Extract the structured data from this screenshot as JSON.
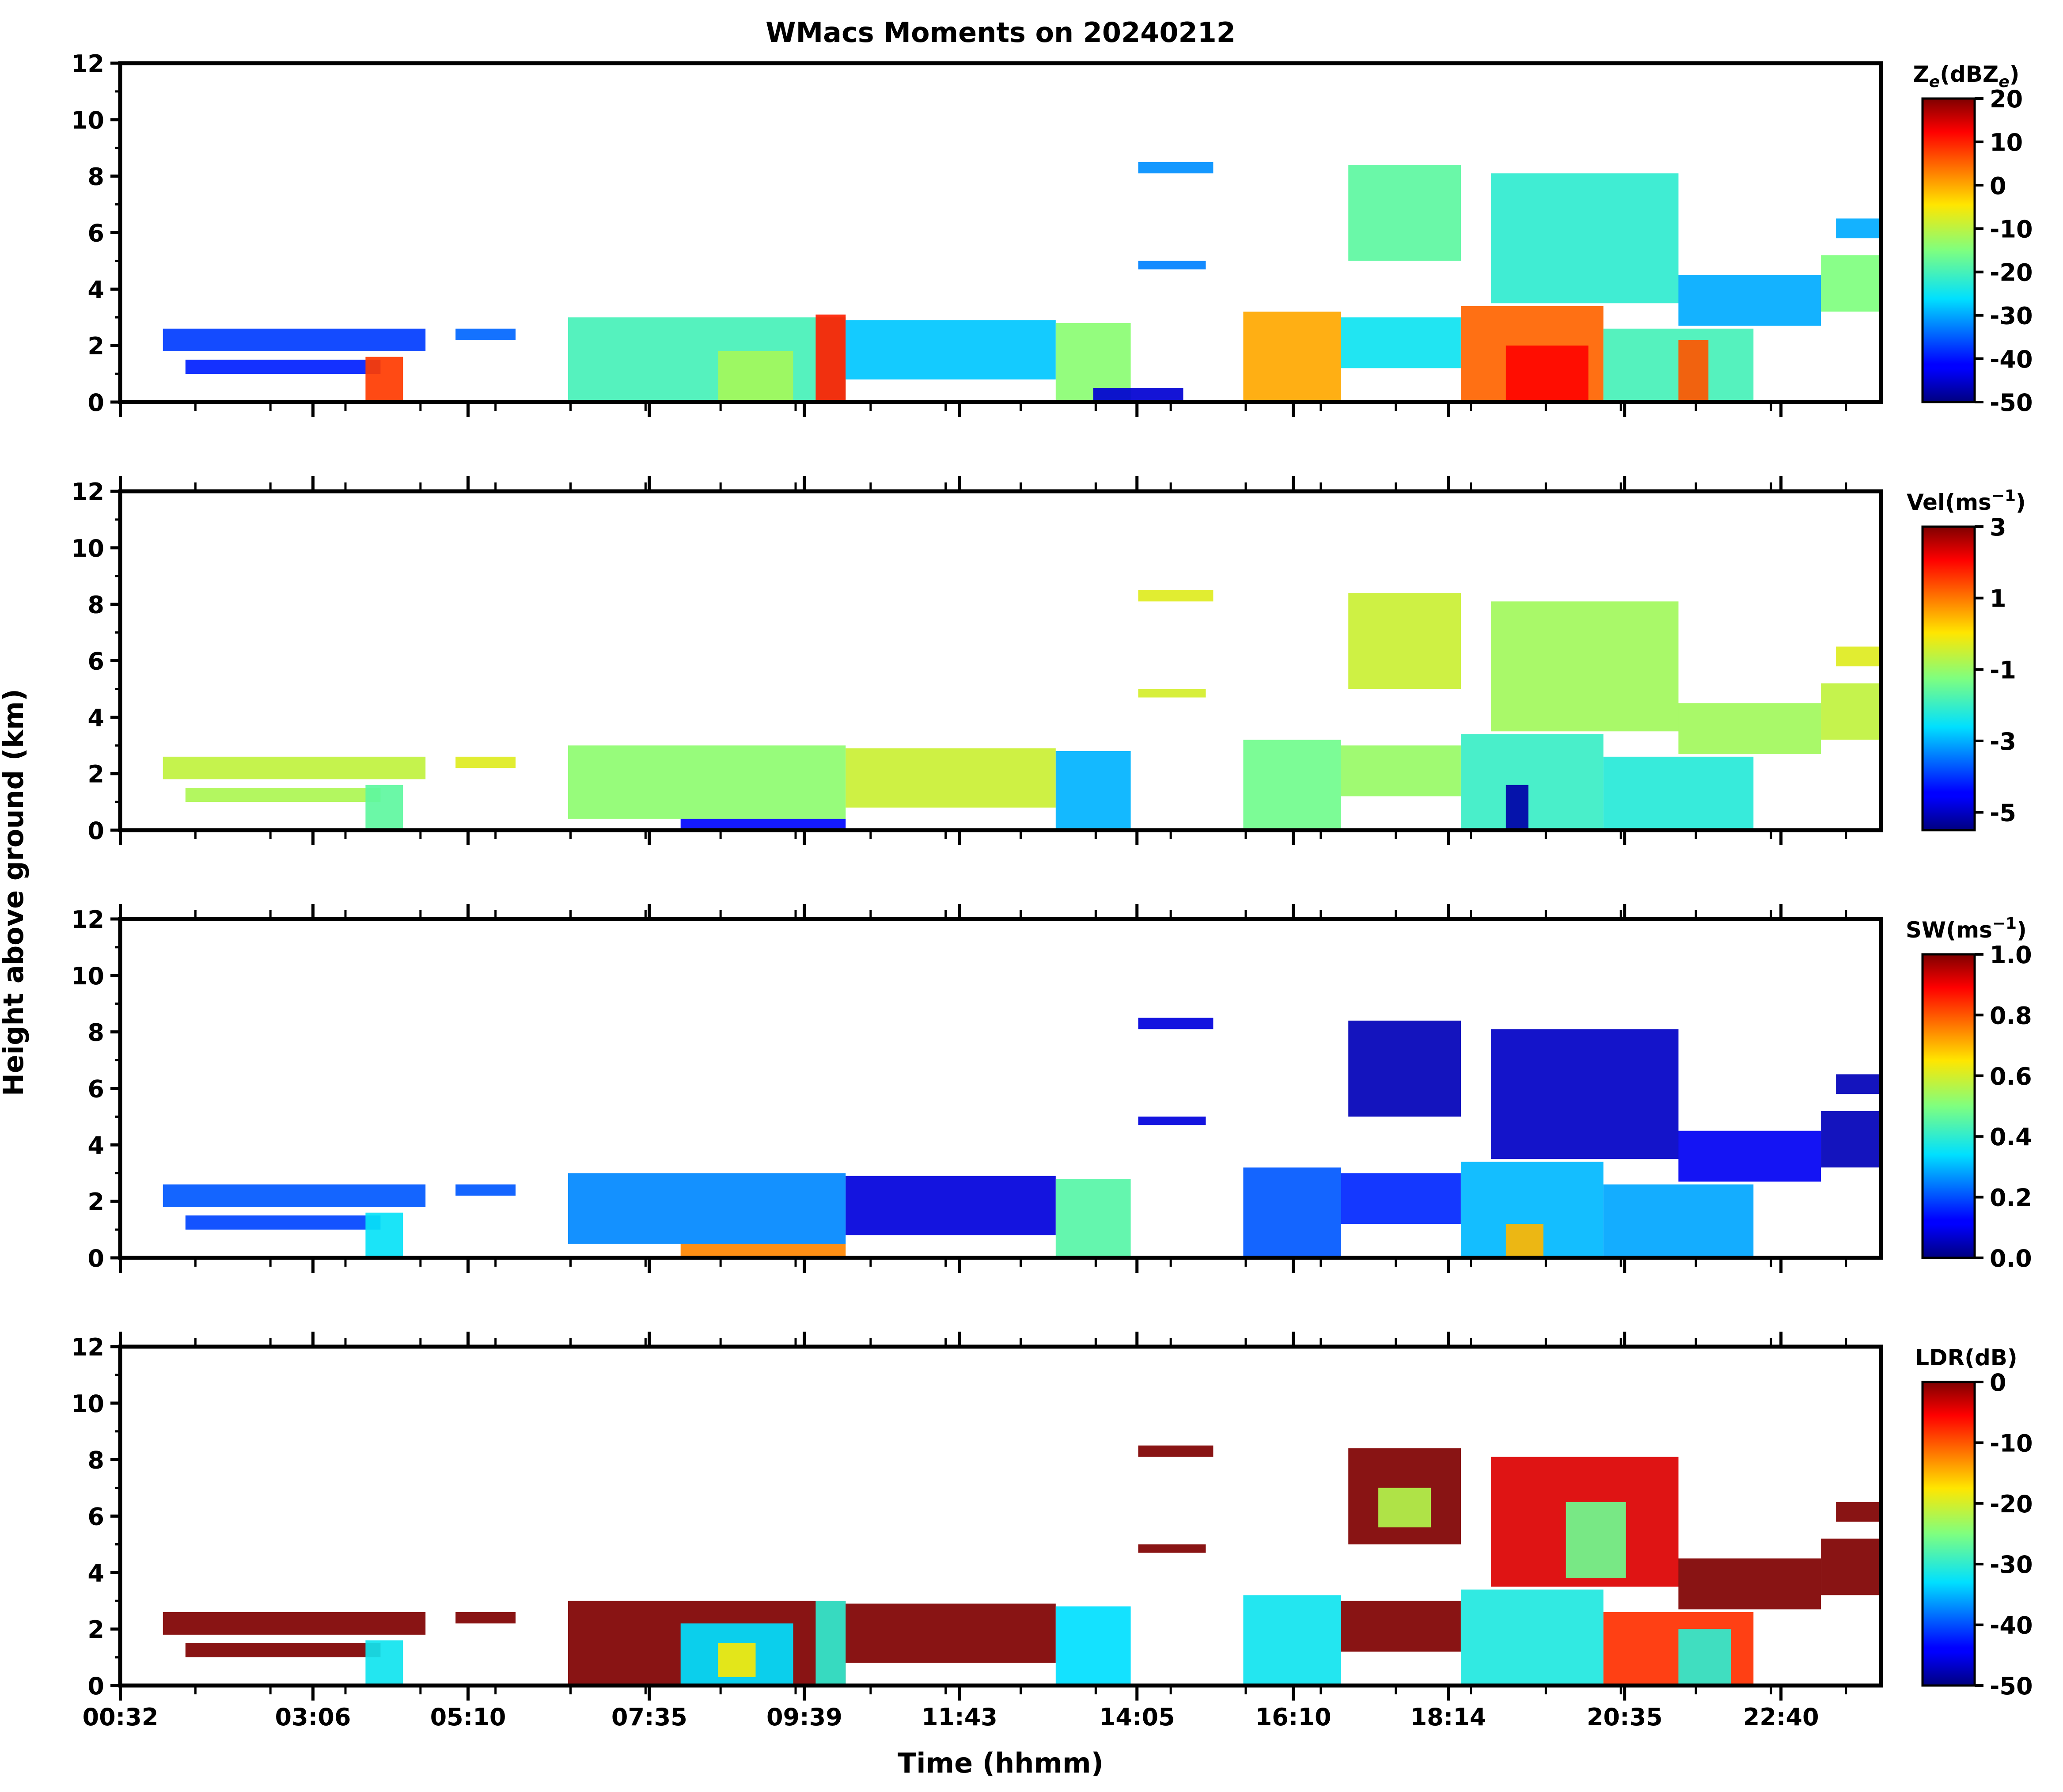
{
  "chart_data": {
    "type": "heatmap",
    "title": "WMacs Moments on 20240212",
    "xlabel": "Time (hhmm)",
    "ylabel": "Height above ground (km)",
    "x_tick_labels": [
      "00:32",
      "03:06",
      "05:10",
      "07:35",
      "09:39",
      "11:43",
      "14:05",
      "16:10",
      "18:14",
      "20:35",
      "22:40"
    ],
    "x_range_hours": [
      0.53,
      24.0
    ],
    "x_tick_hours": [
      0.533,
      3.1,
      5.167,
      7.583,
      9.65,
      11.717,
      14.083,
      16.167,
      18.233,
      20.583,
      22.667
    ],
    "y_ticks": [
      0,
      2,
      4,
      6,
      8,
      10,
      12
    ],
    "ylim_km": [
      0,
      12
    ],
    "colormap": "jet",
    "panels": [
      {
        "id": "ze",
        "colorbar_label": "Ze(dBZe)",
        "label_main": "Z",
        "label_sub": "e",
        "label_mid": "(dBZ",
        "label_sub2": "e",
        "label_end": ")",
        "clim": [
          -50,
          20
        ],
        "ticks": [
          "20",
          "10",
          "0",
          "-10",
          "-20",
          "-30",
          "-40",
          "-50"
        ],
        "tick_values": [
          20,
          10,
          0,
          -10,
          -20,
          -30,
          -40,
          -50
        ],
        "regions": [
          {
            "t0": 1.1,
            "t1": 4.6,
            "h0": 1.8,
            "h1": 2.6,
            "v": -38
          },
          {
            "t0": 1.4,
            "t1": 4.0,
            "h0": 1.0,
            "h1": 1.5,
            "v": -40
          },
          {
            "t0": 3.8,
            "t1": 4.3,
            "h0": 0.0,
            "h1": 1.6,
            "v": 8
          },
          {
            "t0": 5.0,
            "t1": 5.8,
            "h0": 2.2,
            "h1": 2.6,
            "v": -35
          },
          {
            "t0": 6.5,
            "t1": 10.2,
            "h0": 0.0,
            "h1": 3.0,
            "v": -20
          },
          {
            "t0": 8.5,
            "t1": 9.5,
            "h0": 0.0,
            "h1": 1.8,
            "v": -12
          },
          {
            "t0": 9.8,
            "t1": 10.2,
            "h0": 0.0,
            "h1": 3.1,
            "v": 10
          },
          {
            "t0": 10.2,
            "t1": 13.0,
            "h0": 0.8,
            "h1": 2.9,
            "v": -28
          },
          {
            "t0": 13.0,
            "t1": 14.0,
            "h0": 0.0,
            "h1": 2.8,
            "v": -14
          },
          {
            "t0": 13.5,
            "t1": 14.7,
            "h0": 0.0,
            "h1": 0.5,
            "v": -45
          },
          {
            "t0": 14.1,
            "t1": 15.1,
            "h0": 8.1,
            "h1": 8.5,
            "v": -32
          },
          {
            "t0": 14.1,
            "t1": 15.0,
            "h0": 4.7,
            "h1": 5.0,
            "v": -33
          },
          {
            "t0": 15.5,
            "t1": 16.8,
            "h0": 0.0,
            "h1": 3.2,
            "v": 0
          },
          {
            "t0": 16.8,
            "t1": 18.4,
            "h0": 1.2,
            "h1": 3.0,
            "v": -25
          },
          {
            "t0": 16.9,
            "t1": 18.4,
            "h0": 5.0,
            "h1": 8.4,
            "v": -18
          },
          {
            "t0": 18.4,
            "t1": 20.3,
            "h0": 0.0,
            "h1": 3.4,
            "v": 5
          },
          {
            "t0": 19.0,
            "t1": 20.1,
            "h0": 0.0,
            "h1": 2.0,
            "v": 12
          },
          {
            "t0": 18.8,
            "t1": 21.3,
            "h0": 3.5,
            "h1": 8.1,
            "v": -22
          },
          {
            "t0": 20.3,
            "t1": 22.3,
            "h0": 0.0,
            "h1": 2.6,
            "v": -20
          },
          {
            "t0": 21.3,
            "t1": 21.7,
            "h0": 0.0,
            "h1": 2.2,
            "v": 6
          },
          {
            "t0": 21.3,
            "t1": 23.2,
            "h0": 2.7,
            "h1": 4.5,
            "v": -30
          },
          {
            "t0": 23.2,
            "t1": 24.0,
            "h0": 3.2,
            "h1": 5.2,
            "v": -15
          },
          {
            "t0": 23.4,
            "t1": 24.0,
            "h0": 5.8,
            "h1": 6.5,
            "v": -30
          }
        ]
      },
      {
        "id": "vel",
        "colorbar_label": "Vel(ms-1)",
        "label_main": "Vel(ms",
        "label_sup": "−1",
        "label_end": ")",
        "clim": [
          -5.5,
          3.0
        ],
        "ticks": [
          "3",
          "1",
          "-1",
          "-3",
          "-5"
        ],
        "tick_values": [
          3,
          1,
          -1,
          -3,
          -5
        ],
        "regions": [
          {
            "t0": 1.1,
            "t1": 4.6,
            "h0": 1.8,
            "h1": 2.6,
            "v": -0.6
          },
          {
            "t0": 1.4,
            "t1": 4.0,
            "h0": 1.0,
            "h1": 1.5,
            "v": -0.8
          },
          {
            "t0": 3.8,
            "t1": 4.3,
            "h0": 0.0,
            "h1": 1.6,
            "v": -1.6
          },
          {
            "t0": 5.0,
            "t1": 5.8,
            "h0": 2.2,
            "h1": 2.6,
            "v": -0.3
          },
          {
            "t0": 6.5,
            "t1": 10.2,
            "h0": 0.4,
            "h1": 3.0,
            "v": -1.1
          },
          {
            "t0": 8.0,
            "t1": 10.2,
            "h0": 0.0,
            "h1": 0.4,
            "v": -4.5
          },
          {
            "t0": 10.2,
            "t1": 13.0,
            "h0": 0.8,
            "h1": 2.9,
            "v": -0.5
          },
          {
            "t0": 13.0,
            "t1": 14.0,
            "h0": 0.0,
            "h1": 2.8,
            "v": -3.0
          },
          {
            "t0": 14.1,
            "t1": 15.1,
            "h0": 8.1,
            "h1": 8.5,
            "v": -0.3
          },
          {
            "t0": 14.1,
            "t1": 15.0,
            "h0": 4.7,
            "h1": 5.0,
            "v": -0.4
          },
          {
            "t0": 15.5,
            "t1": 16.8,
            "h0": 0.0,
            "h1": 3.2,
            "v": -1.4
          },
          {
            "t0": 16.8,
            "t1": 18.4,
            "h0": 1.2,
            "h1": 3.0,
            "v": -1.0
          },
          {
            "t0": 16.9,
            "t1": 18.4,
            "h0": 5.0,
            "h1": 8.4,
            "v": -0.5
          },
          {
            "t0": 18.4,
            "t1": 20.3,
            "h0": 0.0,
            "h1": 3.4,
            "v": -2.0
          },
          {
            "t0": 19.0,
            "t1": 19.3,
            "h0": 0.0,
            "h1": 1.6,
            "v": -5.2
          },
          {
            "t0": 18.8,
            "t1": 21.3,
            "h0": 3.5,
            "h1": 8.1,
            "v": -0.9
          },
          {
            "t0": 20.3,
            "t1": 22.3,
            "h0": 0.0,
            "h1": 2.6,
            "v": -2.2
          },
          {
            "t0": 21.3,
            "t1": 23.2,
            "h0": 2.7,
            "h1": 4.5,
            "v": -0.9
          },
          {
            "t0": 23.2,
            "t1": 24.0,
            "h0": 3.2,
            "h1": 5.2,
            "v": -0.6
          },
          {
            "t0": 23.4,
            "t1": 24.0,
            "h0": 5.8,
            "h1": 6.5,
            "v": -0.3
          }
        ]
      },
      {
        "id": "sw",
        "colorbar_label": "SW(ms-1)",
        "label_main": "SW(ms",
        "label_sup": "−1",
        "label_end": ")",
        "clim": [
          0.0,
          1.0
        ],
        "ticks": [
          "1.0",
          "0.8",
          "0.6",
          "0.4",
          "0.2",
          "0.0"
        ],
        "tick_values": [
          1.0,
          0.8,
          0.6,
          0.4,
          0.2,
          0.0
        ],
        "regions": [
          {
            "t0": 1.1,
            "t1": 4.6,
            "h0": 1.8,
            "h1": 2.6,
            "v": 0.2
          },
          {
            "t0": 1.4,
            "t1": 4.0,
            "h0": 1.0,
            "h1": 1.5,
            "v": 0.18
          },
          {
            "t0": 3.8,
            "t1": 4.3,
            "h0": 0.0,
            "h1": 1.6,
            "v": 0.35
          },
          {
            "t0": 5.0,
            "t1": 5.8,
            "h0": 2.2,
            "h1": 2.6,
            "v": 0.2
          },
          {
            "t0": 6.5,
            "t1": 10.2,
            "h0": 0.5,
            "h1": 3.0,
            "v": 0.25
          },
          {
            "t0": 8.0,
            "t1": 10.2,
            "h0": 0.0,
            "h1": 0.5,
            "v": 0.75
          },
          {
            "t0": 10.2,
            "t1": 13.0,
            "h0": 0.8,
            "h1": 2.9,
            "v": 0.08
          },
          {
            "t0": 13.0,
            "t1": 14.0,
            "h0": 0.0,
            "h1": 2.8,
            "v": 0.45
          },
          {
            "t0": 14.1,
            "t1": 15.1,
            "h0": 8.1,
            "h1": 8.5,
            "v": 0.08
          },
          {
            "t0": 14.1,
            "t1": 15.0,
            "h0": 4.7,
            "h1": 5.0,
            "v": 0.08
          },
          {
            "t0": 15.5,
            "t1": 16.8,
            "h0": 0.0,
            "h1": 3.2,
            "v": 0.2
          },
          {
            "t0": 16.8,
            "t1": 18.4,
            "h0": 1.2,
            "h1": 3.0,
            "v": 0.15
          },
          {
            "t0": 16.9,
            "t1": 18.4,
            "h0": 5.0,
            "h1": 8.4,
            "v": 0.05
          },
          {
            "t0": 18.4,
            "t1": 20.3,
            "h0": 0.0,
            "h1": 3.4,
            "v": 0.3
          },
          {
            "t0": 19.0,
            "t1": 19.5,
            "h0": 0.0,
            "h1": 1.2,
            "v": 0.7
          },
          {
            "t0": 18.8,
            "t1": 21.3,
            "h0": 3.5,
            "h1": 8.1,
            "v": 0.06
          },
          {
            "t0": 20.3,
            "t1": 22.3,
            "h0": 0.0,
            "h1": 2.6,
            "v": 0.28
          },
          {
            "t0": 21.3,
            "t1": 23.2,
            "h0": 2.7,
            "h1": 4.5,
            "v": 0.1
          },
          {
            "t0": 23.2,
            "t1": 24.0,
            "h0": 3.2,
            "h1": 5.2,
            "v": 0.05
          },
          {
            "t0": 23.4,
            "t1": 24.0,
            "h0": 5.8,
            "h1": 6.5,
            "v": 0.05
          }
        ]
      },
      {
        "id": "ldr",
        "colorbar_label": "LDR(dB)",
        "label_main": "LDR(dB)",
        "clim": [
          -50,
          0
        ],
        "ticks": [
          "0",
          "-10",
          "-20",
          "-30",
          "-40",
          "-50"
        ],
        "tick_values": [
          0,
          -10,
          -20,
          -30,
          -40,
          -50
        ],
        "regions": [
          {
            "t0": 1.1,
            "t1": 4.6,
            "h0": 1.8,
            "h1": 2.6,
            "v": 0
          },
          {
            "t0": 1.4,
            "t1": 4.0,
            "h0": 1.0,
            "h1": 1.5,
            "v": 0
          },
          {
            "t0": 3.8,
            "t1": 4.3,
            "h0": 0.0,
            "h1": 1.6,
            "v": -32
          },
          {
            "t0": 5.0,
            "t1": 5.8,
            "h0": 2.2,
            "h1": 2.6,
            "v": 0
          },
          {
            "t0": 6.5,
            "t1": 10.2,
            "h0": 0.0,
            "h1": 3.0,
            "v": 0
          },
          {
            "t0": 8.0,
            "t1": 9.5,
            "h0": 0.0,
            "h1": 2.2,
            "v": -33
          },
          {
            "t0": 8.5,
            "t1": 9.0,
            "h0": 0.3,
            "h1": 1.5,
            "v": -18
          },
          {
            "t0": 9.8,
            "t1": 10.2,
            "h0": 0.0,
            "h1": 3.0,
            "v": -30
          },
          {
            "t0": 10.2,
            "t1": 13.0,
            "h0": 0.8,
            "h1": 2.9,
            "v": 0
          },
          {
            "t0": 13.0,
            "t1": 14.0,
            "h0": 0.0,
            "h1": 2.8,
            "v": -33
          },
          {
            "t0": 14.1,
            "t1": 15.1,
            "h0": 8.1,
            "h1": 8.5,
            "v": 0
          },
          {
            "t0": 14.1,
            "t1": 15.0,
            "h0": 4.7,
            "h1": 5.0,
            "v": 0
          },
          {
            "t0": 15.5,
            "t1": 16.8,
            "h0": 0.0,
            "h1": 3.2,
            "v": -32
          },
          {
            "t0": 16.8,
            "t1": 18.4,
            "h0": 1.2,
            "h1": 3.0,
            "v": 0
          },
          {
            "t0": 16.9,
            "t1": 18.4,
            "h0": 5.0,
            "h1": 8.4,
            "v": 0
          },
          {
            "t0": 17.3,
            "t1": 18.0,
            "h0": 5.6,
            "h1": 7.0,
            "v": -22
          },
          {
            "t0": 18.4,
            "t1": 20.3,
            "h0": 0.0,
            "h1": 3.4,
            "v": -31
          },
          {
            "t0": 18.8,
            "t1": 21.3,
            "h0": 3.5,
            "h1": 8.1,
            "v": -4
          },
          {
            "t0": 19.8,
            "t1": 20.6,
            "h0": 3.8,
            "h1": 6.5,
            "v": -26
          },
          {
            "t0": 20.3,
            "t1": 22.3,
            "h0": 0.0,
            "h1": 2.6,
            "v": -8
          },
          {
            "t0": 21.3,
            "t1": 22.0,
            "h0": 0.0,
            "h1": 2.0,
            "v": -30
          },
          {
            "t0": 21.3,
            "t1": 23.2,
            "h0": 2.7,
            "h1": 4.5,
            "v": 0
          },
          {
            "t0": 23.2,
            "t1": 24.0,
            "h0": 3.2,
            "h1": 5.2,
            "v": 0
          },
          {
            "t0": 23.4,
            "t1": 24.0,
            "h0": 5.8,
            "h1": 6.5,
            "v": 0
          }
        ]
      }
    ]
  }
}
